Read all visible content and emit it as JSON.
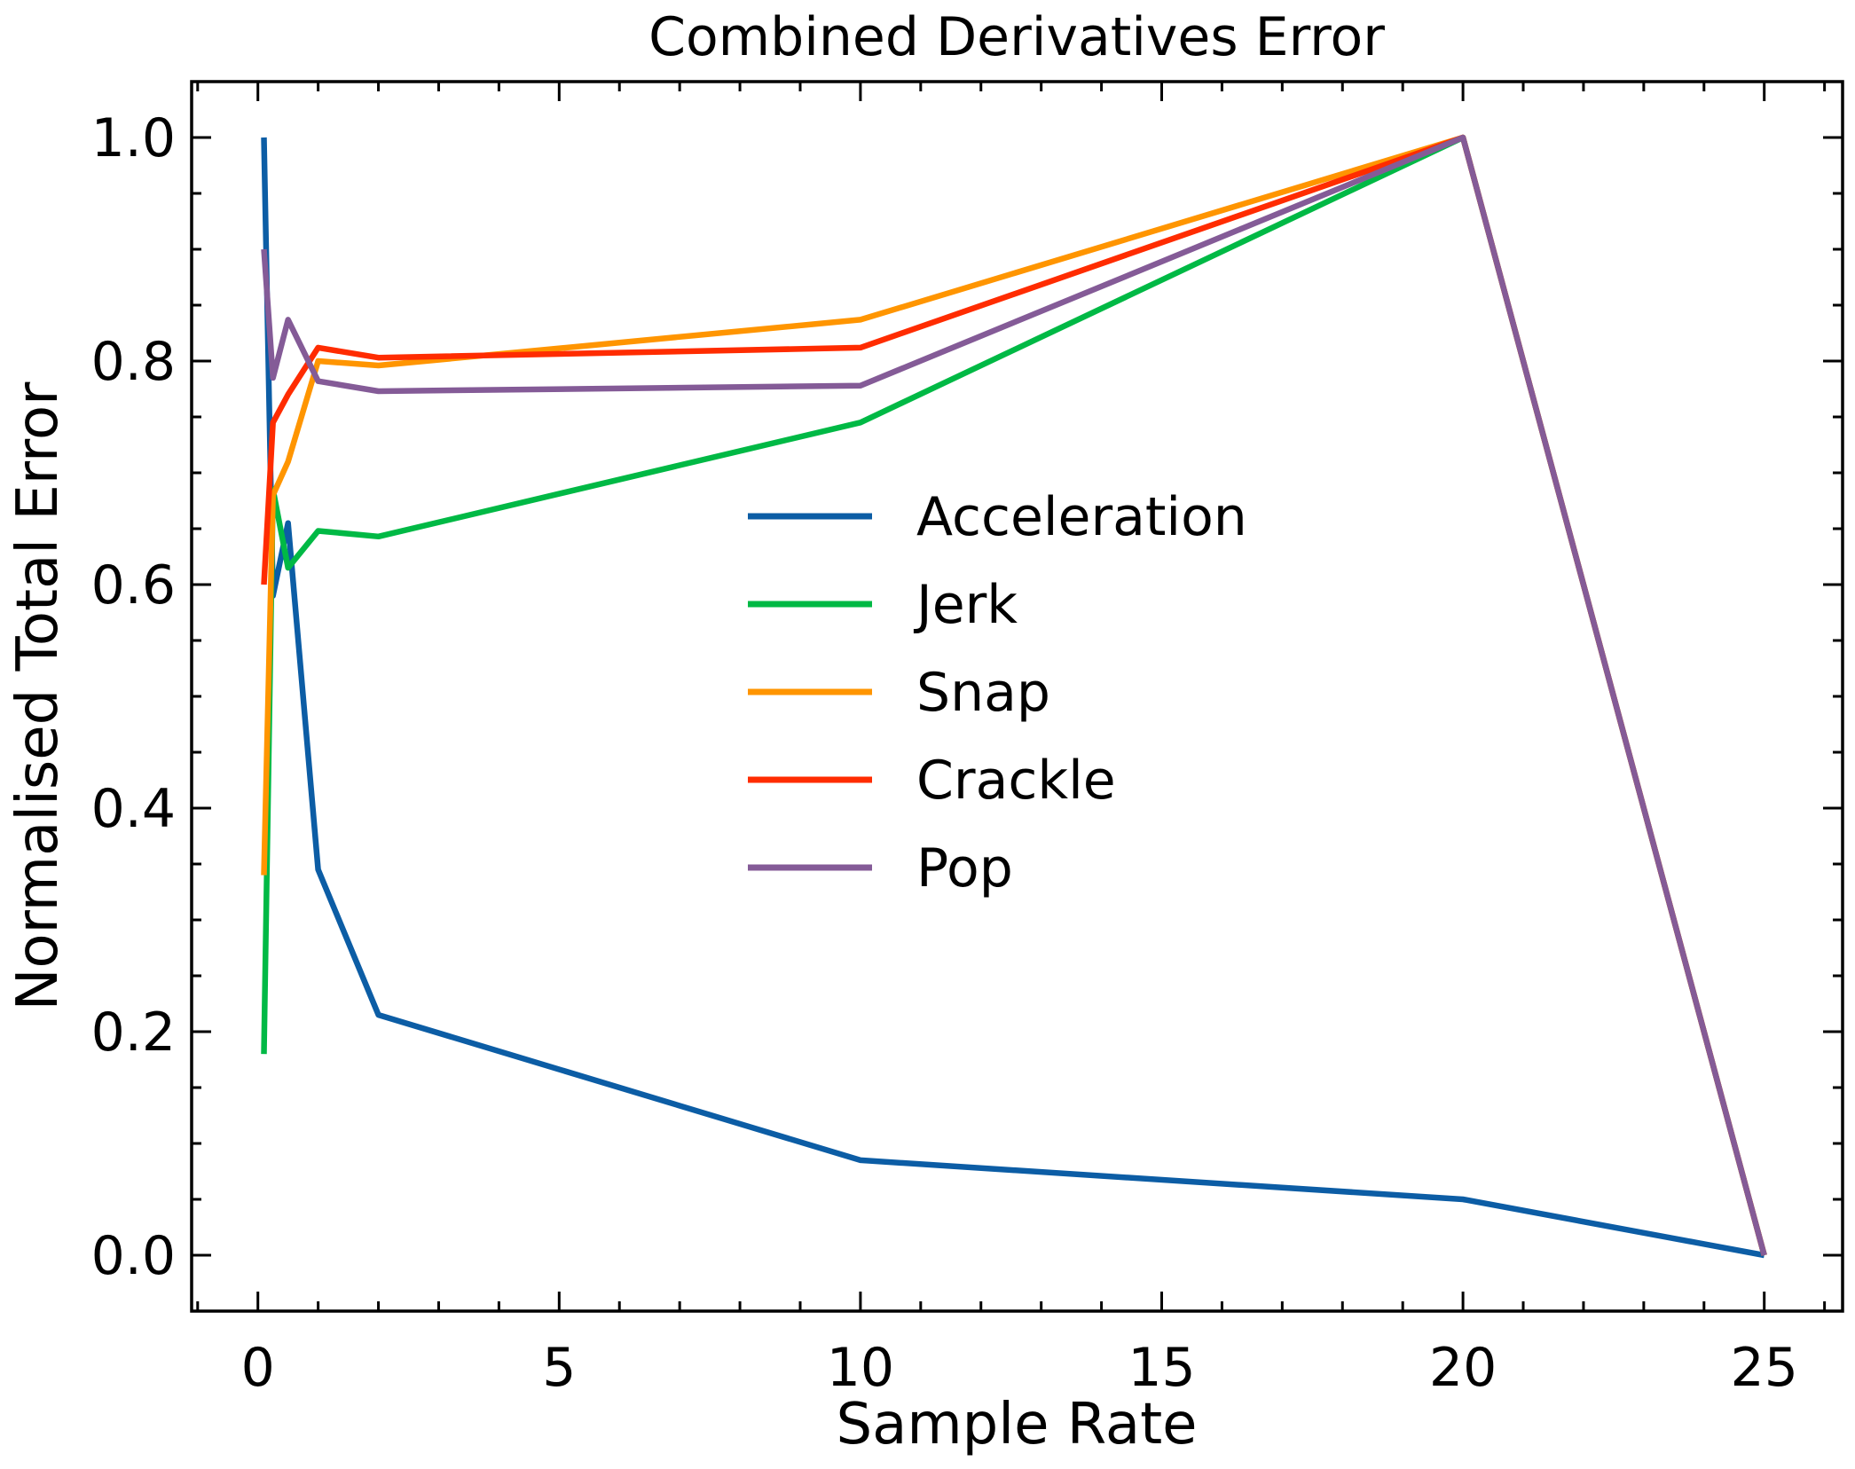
{
  "chart_data": {
    "type": "line",
    "title": "Combined Derivatives Error",
    "xlabel": "Sample Rate",
    "ylabel": "Normalised Total Error",
    "xlim": [
      -1.1,
      26.3
    ],
    "ylim": [
      -0.05,
      1.05
    ],
    "x_ticks": [
      0,
      5,
      10,
      15,
      20,
      25
    ],
    "x_tick_labels": [
      "0",
      "5",
      "10",
      "15",
      "20",
      "25"
    ],
    "y_ticks": [
      0.0,
      0.2,
      0.4,
      0.6,
      0.8,
      1.0
    ],
    "y_tick_labels": [
      "0.0",
      "0.2",
      "0.4",
      "0.6",
      "0.8",
      "1.0"
    ],
    "grid": false,
    "legend_placement": "center-right",
    "x": [
      0.1,
      0.25,
      0.5,
      1,
      2,
      10,
      20,
      25
    ],
    "series": [
      {
        "name": "Acceleration",
        "color": "#0C5DA5",
        "values": [
          1.0,
          0.59,
          0.655,
          0.345,
          0.215,
          0.085,
          0.05,
          0.0
        ]
      },
      {
        "name": "Jerk",
        "color": "#00B945",
        "values": [
          0.18,
          0.685,
          0.615,
          0.648,
          0.643,
          0.745,
          1.0,
          0.0
        ]
      },
      {
        "name": "Snap",
        "color": "#FF9500",
        "values": [
          0.34,
          0.68,
          0.71,
          0.8,
          0.796,
          0.837,
          1.0,
          0.0
        ]
      },
      {
        "name": "Crackle",
        "color": "#FF2C00",
        "values": [
          0.6,
          0.745,
          0.77,
          0.812,
          0.803,
          0.812,
          1.0,
          0.0
        ]
      },
      {
        "name": "Pop",
        "color": "#845B97",
        "values": [
          0.9,
          0.785,
          0.837,
          0.782,
          0.773,
          0.778,
          1.0,
          0.0
        ]
      }
    ]
  }
}
